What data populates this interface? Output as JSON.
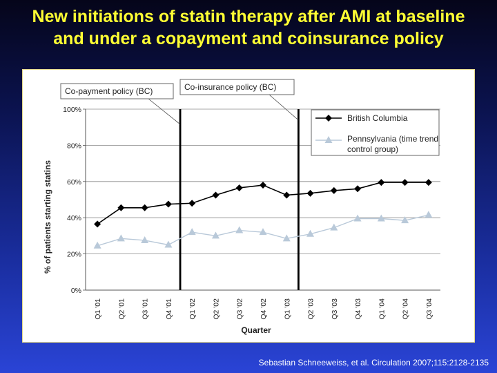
{
  "slide": {
    "title_line1": "New initiations of statin therapy after AMI at baseline",
    "title_line2": "and under a copayment and coinsurance policy",
    "citation": "Sebastian Schneeweiss, et al. Circulation 2007;115:2128-2135"
  },
  "chart_data": {
    "type": "line",
    "title": "",
    "xlabel": "Quarter",
    "ylabel": "% of patients starting statins",
    "categories": [
      "Q1 '01",
      "Q2 '01",
      "Q3 '01",
      "Q4 '01",
      "Q1 '02",
      "Q2 '02",
      "Q3 '02",
      "Q4 '02",
      "Q1 '03",
      "Q2 '03",
      "Q3 '03",
      "Q4 '03",
      "Q1 '04",
      "Q2 '04",
      "Q3 '04"
    ],
    "ylim": [
      0,
      100
    ],
    "yticks": [
      "0%",
      "20%",
      "40%",
      "60%",
      "80%",
      "100%"
    ],
    "series": [
      {
        "name": "British Columbia",
        "marker": "diamond",
        "color": "#000000",
        "values": [
          36.5,
          45.5,
          45.5,
          47.5,
          48,
          52.5,
          56.5,
          58,
          52.5,
          53.5,
          55,
          56,
          59.5,
          59.5,
          59.5
        ]
      },
      {
        "name": "Pennsylvania (time trend control group)",
        "marker": "triangle",
        "color": "#b9c9d9",
        "values": [
          24.5,
          28.5,
          27.5,
          25,
          32,
          30,
          33,
          32,
          28.5,
          31,
          34.5,
          39.5,
          39.5,
          38.5,
          41.5
        ]
      }
    ],
    "legend_position": "top-right",
    "grid": "horizontal",
    "annotations": [
      {
        "label": "Co-payment policy (BC)",
        "after_category_index": 3
      },
      {
        "label": "Co-insurance policy (BC)",
        "after_category_index": 8
      }
    ]
  }
}
